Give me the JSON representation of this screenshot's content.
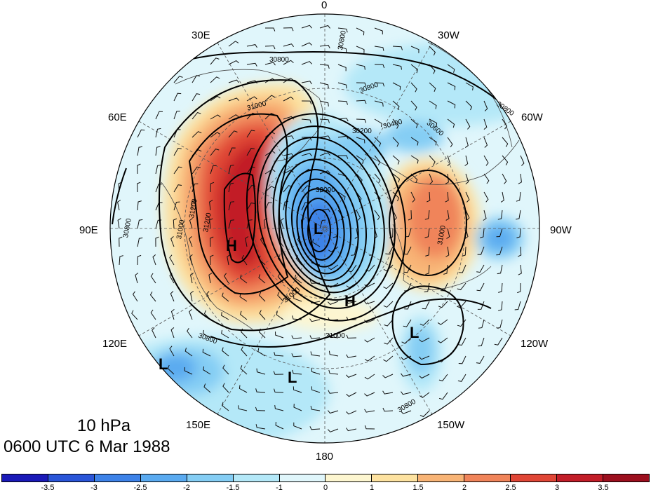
{
  "map": {
    "level_label": "10 hPa",
    "time_label": "0600 UTC 6 Mar 1988",
    "longitude_labels": {
      "top": "0",
      "upper_left": "30E",
      "upper_right": "30W",
      "left_upper": "60E",
      "right_upper": "60W",
      "left": "90E",
      "right": "90W",
      "left_lower": "120E",
      "right_lower": "120W",
      "lower_left": "150E",
      "lower_right": "150W",
      "bottom": "180"
    },
    "pressure_centers": [
      {
        "label": "L",
        "role": "main-low"
      },
      {
        "label": "H",
        "role": "west-high"
      },
      {
        "label": "H",
        "role": "south-high"
      },
      {
        "label": "L",
        "role": "low-120e"
      },
      {
        "label": "L",
        "role": "low-150e"
      },
      {
        "label": "L",
        "role": "low-150w"
      }
    ],
    "contour_labels": [
      "30800",
      "30800",
      "30800",
      "30800",
      "31000",
      "31200",
      "31200",
      "31000",
      "30200",
      "30400",
      "30600",
      "30000",
      "31000",
      "31000",
      "30800",
      "30800",
      "30800",
      "31000"
    ],
    "colorbar": {
      "ticks": [
        "-3.5",
        "-3",
        "-2.5",
        "-2",
        "-1.5",
        "-1",
        "0",
        "1",
        "1.5",
        "2",
        "2.5",
        "3",
        "3.5"
      ],
      "colors": [
        "#1a1ab8",
        "#2a55d8",
        "#3d82e8",
        "#5aaaf0",
        "#84cdf4",
        "#b4e8f8",
        "#e0f6fb",
        "#fdf6d0",
        "#fde2a0",
        "#f8b476",
        "#f0845a",
        "#e04636",
        "#c21d28",
        "#9c0f1e"
      ]
    }
  }
}
